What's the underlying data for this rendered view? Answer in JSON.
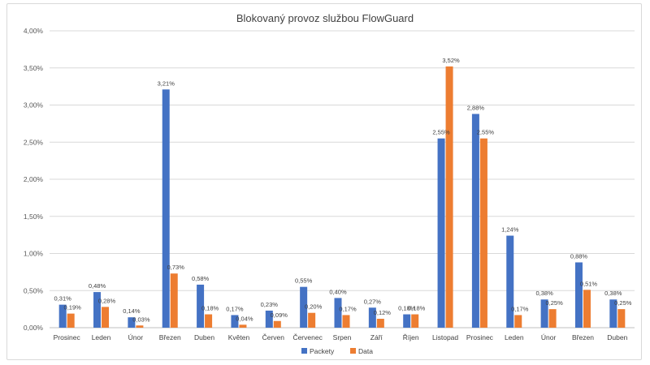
{
  "chart_data": {
    "type": "bar",
    "title": "Blokovaný provoz službou FlowGuard",
    "xlabel": "",
    "ylabel": "",
    "ylim": [
      0,
      4
    ],
    "yticks": [
      0,
      0.5,
      1,
      1.5,
      2,
      2.5,
      3,
      3.5,
      4
    ],
    "ytick_labels": [
      "0,00%",
      "0,50%",
      "1,00%",
      "1,50%",
      "2,00%",
      "2,50%",
      "3,00%",
      "3,50%",
      "4,00%"
    ],
    "grid": true,
    "legend_position": "bottom",
    "categories": [
      "Prosinec",
      "Leden",
      "Únor",
      "Březen",
      "Duben",
      "Květen",
      "Červen",
      "Červenec",
      "Srpen",
      "Září",
      "Říjen",
      "Listopad",
      "Prosinec",
      "Leden",
      "Únor",
      "Březen",
      "Duben"
    ],
    "series": [
      {
        "name": "Packety",
        "color": "#4472c4",
        "values": [
          0.31,
          0.48,
          0.14,
          3.21,
          0.58,
          0.17,
          0.23,
          0.55,
          0.4,
          0.27,
          0.18,
          2.55,
          2.88,
          1.24,
          0.38,
          0.88,
          0.38
        ],
        "labels": [
          "0,31%",
          "0,48%",
          "0,14%",
          "3,21%",
          "0,58%",
          "0,17%",
          "0,23%",
          "0,55%",
          "0,40%",
          "0,27%",
          "0,18%",
          "2,55%",
          "2,88%",
          "1,24%",
          "0,38%",
          "0,88%",
          "0,38%"
        ]
      },
      {
        "name": "Data",
        "color": "#ed7d31",
        "values": [
          0.19,
          0.28,
          0.03,
          0.73,
          0.18,
          0.04,
          0.09,
          0.2,
          0.17,
          0.12,
          0.18,
          3.52,
          2.55,
          0.17,
          0.25,
          0.51,
          0.25
        ],
        "labels": [
          "0,19%",
          "0,28%",
          "0,03%",
          "0,73%",
          "0,18%",
          "0,04%",
          "0,09%",
          "0,20%",
          "0,17%",
          "0,12%",
          "0,18%",
          "3,52%",
          "2,55%",
          "0,17%",
          "0,25%",
          "0,51%",
          "0,25%"
        ]
      }
    ]
  }
}
